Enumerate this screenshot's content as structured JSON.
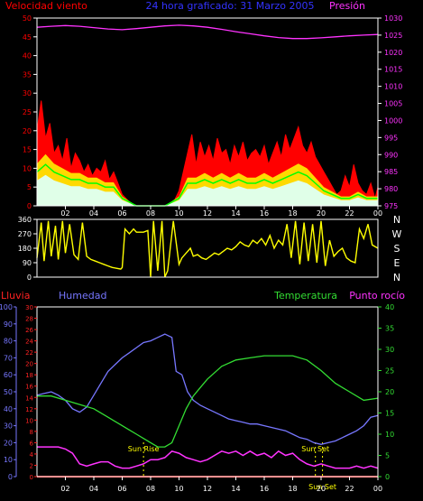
{
  "colors": {
    "background": "#000000",
    "axis": "#ffffff",
    "wind_speed": "#ff0000",
    "wind_gust_band": "#ffff00",
    "wind_avg": "#00ff00",
    "wind_min": "#e0ffe8",
    "pressure": "#ff33ff",
    "direction": "#ffff00",
    "rain": "#ff2222",
    "humidity": "#7777ff",
    "temperature": "#33dd33",
    "dewpoint": "#ff33ff",
    "sun_marker": "#ffff00",
    "title": "#3333ff"
  },
  "chart_data": [
    {
      "type": "line",
      "id": "wind",
      "title": "24 hora graficado: 31 Marzo 2005",
      "left_label": "Velocidad viento",
      "right_label": "Presión",
      "left_axis": {
        "range": [
          0,
          50
        ],
        "ticks": [
          "0",
          "5",
          "10",
          "15",
          "20",
          "25",
          "30",
          "35",
          "40",
          "45",
          "50"
        ]
      },
      "right_axis": {
        "range": [
          975,
          1030
        ],
        "ticks": [
          "975",
          "980",
          "985",
          "990",
          "995",
          "1000",
          "1005",
          "1010",
          "1015",
          "1020",
          "1025",
          "1030"
        ]
      },
      "x_axis": {
        "range": [
          0,
          24
        ],
        "ticks": [
          "02",
          "04",
          "06",
          "08",
          "10",
          "12",
          "14",
          "16",
          "18",
          "20",
          "22",
          "00"
        ]
      },
      "grid": false,
      "series": [
        {
          "key": "wind_max",
          "x": [
            0,
            0.3,
            0.6,
            0.9,
            1.2,
            1.5,
            1.8,
            2.1,
            2.4,
            2.7,
            3.0,
            3.3,
            3.6,
            3.9,
            4.2,
            4.5,
            4.8,
            5.1,
            5.4,
            5.7,
            6.0,
            6.5,
            7.0,
            7.5,
            8.0,
            8.5,
            9.0,
            9.5,
            10.0,
            10.3,
            10.6,
            10.9,
            11.2,
            11.5,
            11.8,
            12.1,
            12.4,
            12.7,
            13.0,
            13.3,
            13.6,
            13.9,
            14.2,
            14.5,
            14.8,
            15.1,
            15.4,
            15.7,
            16.0,
            16.3,
            16.6,
            16.9,
            17.2,
            17.5,
            17.8,
            18.1,
            18.4,
            18.7,
            19.0,
            19.3,
            19.6,
            19.9,
            20.2,
            20.5,
            20.8,
            21.1,
            21.4,
            21.7,
            22.0,
            22.3,
            22.6,
            22.9,
            23.2,
            23.5,
            23.8,
            24
          ],
          "values": [
            20,
            28,
            18,
            22,
            14,
            16,
            12,
            18,
            10,
            14,
            12,
            9,
            11,
            8,
            10,
            9,
            12,
            7,
            9,
            6,
            3,
            1,
            0,
            0,
            0,
            0,
            0,
            0,
            4,
            9,
            14,
            19,
            11,
            17,
            13,
            16,
            12,
            18,
            14,
            15,
            11,
            16,
            13,
            17,
            12,
            14,
            15,
            13,
            16,
            11,
            14,
            17,
            13,
            19,
            15,
            18,
            21,
            16,
            14,
            17,
            13,
            11,
            9,
            7,
            5,
            3,
            4,
            8,
            5,
            11,
            6,
            4,
            3,
            6,
            2,
            5
          ]
        },
        {
          "key": "wind_avg",
          "x": [
            0,
            0.6,
            1.2,
            1.8,
            2.4,
            3.0,
            3.6,
            4.2,
            4.8,
            5.4,
            6.0,
            7.0,
            8.0,
            9.0,
            10.0,
            10.6,
            11.2,
            11.8,
            12.4,
            13.0,
            13.6,
            14.2,
            14.8,
            15.4,
            16.0,
            16.6,
            17.2,
            17.8,
            18.4,
            19.0,
            19.6,
            20.2,
            20.8,
            21.4,
            22.0,
            22.6,
            23.2,
            23.8,
            24
          ],
          "values": [
            9,
            11,
            9,
            8,
            7,
            7,
            6,
            6,
            5,
            5,
            2,
            0,
            0,
            0,
            2,
            6,
            6,
            7,
            6,
            7,
            6,
            7,
            6,
            6,
            7,
            6,
            7,
            8,
            9,
            8,
            6,
            4,
            3,
            2,
            2,
            3,
            2,
            2,
            2
          ]
        },
        {
          "key": "pressure",
          "x": [
            0,
            1,
            2,
            3,
            4,
            5,
            6,
            7,
            8,
            9,
            10,
            11,
            12,
            13,
            14,
            15,
            16,
            17,
            18,
            19,
            20,
            21,
            22,
            23,
            24
          ],
          "values": [
            1027.3,
            1027.6,
            1027.8,
            1027.6,
            1027.2,
            1026.8,
            1026.6,
            1026.9,
            1027.3,
            1027.7,
            1027.9,
            1027.7,
            1027.3,
            1026.7,
            1026.0,
            1025.4,
            1024.8,
            1024.3,
            1024.0,
            1024.0,
            1024.2,
            1024.5,
            1024.8,
            1025.0,
            1025.2
          ]
        }
      ]
    },
    {
      "type": "line",
      "id": "direction",
      "left_axis": {
        "range": [
          0,
          360
        ],
        "ticks": [
          "0",
          "90",
          "180",
          "270",
          "360"
        ]
      },
      "right_labels": [
        "N",
        "W",
        "S",
        "E",
        "N"
      ],
      "x_axis": {
        "range": [
          0,
          24
        ],
        "ticks": [
          "02",
          "04",
          "06",
          "08",
          "10",
          "12",
          "14",
          "16",
          "18",
          "20",
          "22",
          "00"
        ]
      },
      "series": [
        {
          "key": "direction",
          "x": [
            0,
            0.3,
            0.5,
            0.8,
            1.0,
            1.3,
            1.5,
            1.8,
            2.0,
            2.3,
            2.6,
            2.9,
            3.2,
            3.5,
            3.8,
            4.1,
            4.4,
            4.7,
            5.0,
            5.3,
            5.6,
            5.9,
            6.0,
            6.2,
            6.5,
            6.8,
            7.0,
            7.5,
            7.8,
            8.0,
            8.2,
            8.5,
            8.8,
            9.0,
            9.2,
            9.6,
            10.0,
            10.2,
            10.5,
            10.8,
            11.0,
            11.3,
            11.6,
            11.9,
            12.2,
            12.5,
            12.8,
            13.1,
            13.4,
            13.7,
            14.0,
            14.3,
            14.6,
            14.9,
            15.2,
            15.5,
            15.8,
            16.1,
            16.4,
            16.7,
            17.0,
            17.3,
            17.6,
            17.9,
            18.2,
            18.5,
            18.8,
            19.1,
            19.4,
            19.7,
            20.0,
            20.3,
            20.6,
            20.9,
            21.2,
            21.5,
            21.8,
            22.1,
            22.4,
            22.7,
            23.0,
            23.3,
            23.6,
            24
          ],
          "values": [
            120,
            340,
            100,
            350,
            130,
            320,
            110,
            350,
            150,
            330,
            140,
            110,
            340,
            130,
            110,
            100,
            90,
            80,
            70,
            60,
            55,
            50,
            60,
            300,
            270,
            300,
            280,
            280,
            290,
            0,
            350,
            40,
            350,
            0,
            40,
            350,
            80,
            120,
            150,
            180,
            130,
            140,
            120,
            110,
            130,
            150,
            140,
            160,
            180,
            170,
            190,
            220,
            200,
            190,
            230,
            210,
            240,
            200,
            260,
            180,
            230,
            200,
            330,
            120,
            350,
            80,
            340,
            100,
            330,
            90,
            350,
            70,
            230,
            130,
            160,
            180,
            120,
            100,
            90,
            300,
            240,
            330,
            200,
            180
          ]
        }
      ]
    },
    {
      "type": "line",
      "id": "climate",
      "left_labels": [
        "Lluvia",
        "Humedad"
      ],
      "right_labels": [
        "Temperatura",
        "Punto rocío"
      ],
      "humidity_axis": {
        "range": [
          0,
          100
        ],
        "ticks": [
          "0",
          "10",
          "20",
          "30",
          "40",
          "50",
          "60",
          "70",
          "80",
          "90",
          "100"
        ]
      },
      "rain_axis": {
        "range": [
          0,
          30
        ],
        "ticks": [
          "0",
          "2",
          "4",
          "6",
          "8",
          "10",
          "12",
          "14",
          "16",
          "18",
          "20",
          "22",
          "24",
          "26",
          "28",
          "30"
        ]
      },
      "temp_axis": {
        "range": [
          0,
          40
        ],
        "ticks": [
          "0",
          "5",
          "10",
          "15",
          "20",
          "25",
          "30",
          "35",
          "40"
        ]
      },
      "x_axis": {
        "range": [
          0,
          24
        ],
        "ticks": [
          "02",
          "04",
          "06",
          "08",
          "10",
          "12",
          "14",
          "16",
          "18",
          "20",
          "22",
          "00"
        ]
      },
      "annotations": [
        {
          "label": "Sun Rise",
          "x": 7.5
        },
        {
          "label": "Sun Set",
          "x": 19.6
        },
        {
          "label": "Sun Set",
          "x": 20.1
        }
      ],
      "series": [
        {
          "key": "humidity",
          "x": [
            0,
            0.5,
            1.0,
            1.5,
            2.0,
            2.5,
            3.0,
            3.5,
            4.0,
            4.5,
            5.0,
            5.5,
            6.0,
            6.5,
            7.0,
            7.5,
            8.0,
            8.5,
            9.0,
            9.5,
            9.8,
            10.2,
            10.6,
            11.0,
            11.5,
            12.0,
            12.5,
            13.0,
            13.5,
            14.0,
            14.5,
            15.0,
            15.5,
            16.0,
            16.5,
            17.0,
            17.5,
            18.0,
            18.5,
            19.0,
            19.5,
            20.0,
            20.5,
            21.0,
            21.5,
            22.0,
            22.5,
            23.0,
            23.5,
            24
          ],
          "values": [
            48,
            49,
            50,
            48,
            45,
            40,
            38,
            41,
            48,
            55,
            62,
            66,
            70,
            73,
            76,
            79,
            80,
            82,
            84,
            82,
            62,
            60,
            50,
            45,
            42,
            40,
            38,
            36,
            34,
            33,
            32,
            31,
            31,
            30,
            29,
            28,
            27,
            25,
            23,
            22,
            20,
            19,
            20,
            21,
            23,
            25,
            27,
            30,
            35,
            36
          ]
        },
        {
          "key": "temperature",
          "x": [
            0,
            1,
            2,
            3,
            4,
            5,
            6,
            6.5,
            7,
            7.5,
            8,
            8.5,
            9,
            9.5,
            10,
            10.5,
            11,
            11.5,
            12,
            13,
            14,
            15,
            16,
            17,
            18,
            19,
            20,
            21,
            22,
            23,
            24
          ],
          "values": [
            19,
            19,
            18,
            17,
            16,
            14,
            12,
            11,
            10,
            9,
            8,
            7,
            7,
            8,
            12,
            16,
            19,
            21,
            23,
            26,
            27.5,
            28,
            28.5,
            28.5,
            28.5,
            27.5,
            25,
            22,
            20,
            18,
            18.5
          ]
        },
        {
          "key": "dewpoint",
          "x": [
            0,
            0.5,
            1,
            1.5,
            2,
            2.5,
            3,
            3.5,
            4,
            4.5,
            5,
            5.5,
            6,
            6.5,
            7,
            7.5,
            8,
            8.5,
            9,
            9.5,
            10,
            10.5,
            11,
            11.5,
            12,
            12.5,
            13,
            13.5,
            14,
            14.5,
            15,
            15.5,
            16,
            16.5,
            17,
            17.5,
            18,
            18.5,
            19,
            19.5,
            20,
            20.5,
            21,
            21.5,
            22,
            22.5,
            23,
            23.5,
            24
          ],
          "values": [
            7,
            7,
            7,
            7,
            6.5,
            5.5,
            3,
            2.5,
            3,
            3.5,
            3.5,
            2.5,
            2,
            2,
            2.5,
            3,
            4,
            4,
            4.5,
            6,
            5.5,
            4.5,
            4,
            3.5,
            4,
            5,
            6,
            5.5,
            6,
            5,
            6,
            5,
            5.5,
            4.5,
            6,
            5,
            5.5,
            4,
            3,
            2.5,
            3,
            2.5,
            2,
            2,
            2,
            2.5,
            2,
            2.5,
            2
          ]
        },
        {
          "key": "rain",
          "x": [
            0,
            24
          ],
          "values": [
            0,
            0
          ]
        }
      ]
    }
  ]
}
